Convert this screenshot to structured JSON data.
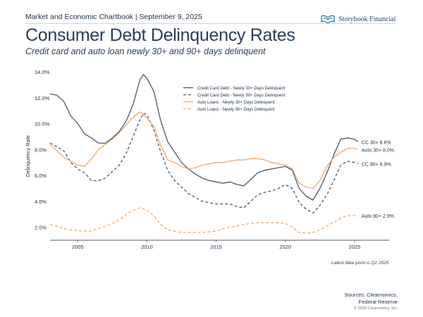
{
  "header": {
    "top_line": "Market and Economic Chartbook | September 9, 2025",
    "logo_text": "Storybook Financial"
  },
  "footnote": "Latest data point is Q2 2025",
  "sources": {
    "line1": "Sources: Clearnomics,",
    "line2": "Federal Reserve"
  },
  "copyright": "© 2025 Clearnomics, Inc.",
  "colors": {
    "navy": "#4a5a6e",
    "orange": "#f0a86a",
    "title": "#2a3f5a",
    "accent_blue": "#2b7fc1"
  },
  "chart_data": {
    "type": "line",
    "title": "Consumer Debt Delinquency Rates",
    "subtitle": "Credit card and auto loan newly 30+ and 90+ days delinquent",
    "ylabel": "Delinquency Rate",
    "xlim": [
      2003.0,
      2027.5
    ],
    "ylim": [
      1.0,
      14.0
    ],
    "x_ticks": [
      2005,
      2010,
      2015,
      2020,
      2025
    ],
    "x_tick_labels": [
      "2005",
      "2010",
      "2015",
      "2020",
      "2025"
    ],
    "y_ticks": [
      2,
      4,
      6,
      8,
      10,
      12,
      14
    ],
    "y_tick_labels": [
      "2.0%",
      "4.0%",
      "6.0%",
      "8.0%",
      "10.0%",
      "12.0%",
      "14.0%"
    ],
    "grid": false,
    "legend_position": "top-right",
    "series": [
      {
        "name": "Credit Card Debt - Newly 30+ Days Delinquent",
        "color": "#4a5a6e",
        "dash": "solid",
        "end_label": "CC 30+ 8.6%",
        "points": [
          [
            2003.0,
            12.3
          ],
          [
            2003.5,
            12.2
          ],
          [
            2004.0,
            11.7
          ],
          [
            2004.5,
            10.6
          ],
          [
            2005.0,
            10.0
          ],
          [
            2005.5,
            9.2
          ],
          [
            2006.0,
            8.9
          ],
          [
            2006.5,
            8.5
          ],
          [
            2007.0,
            8.5
          ],
          [
            2007.5,
            8.9
          ],
          [
            2008.0,
            9.4
          ],
          [
            2008.5,
            10.2
          ],
          [
            2009.0,
            11.5
          ],
          [
            2009.5,
            13.4
          ],
          [
            2009.75,
            13.8
          ],
          [
            2010.0,
            13.5
          ],
          [
            2010.5,
            12.5
          ],
          [
            2011.0,
            10.2
          ],
          [
            2011.5,
            8.6
          ],
          [
            2012.0,
            7.8
          ],
          [
            2012.5,
            7.0
          ],
          [
            2013.0,
            6.5
          ],
          [
            2013.5,
            6.1
          ],
          [
            2014.0,
            5.8
          ],
          [
            2014.5,
            5.6
          ],
          [
            2015.0,
            5.5
          ],
          [
            2015.5,
            5.4
          ],
          [
            2016.0,
            5.5
          ],
          [
            2016.5,
            5.3
          ],
          [
            2017.0,
            5.2
          ],
          [
            2017.5,
            5.7
          ],
          [
            2018.0,
            6.2
          ],
          [
            2018.5,
            6.4
          ],
          [
            2019.0,
            6.5
          ],
          [
            2019.5,
            6.6
          ],
          [
            2020.0,
            6.7
          ],
          [
            2020.5,
            6.4
          ],
          [
            2021.0,
            5.0
          ],
          [
            2021.5,
            4.4
          ],
          [
            2022.0,
            4.1
          ],
          [
            2022.5,
            5.0
          ],
          [
            2023.0,
            6.2
          ],
          [
            2023.5,
            7.6
          ],
          [
            2024.0,
            8.8
          ],
          [
            2024.5,
            8.9
          ],
          [
            2025.0,
            8.8
          ],
          [
            2025.25,
            8.6
          ]
        ]
      },
      {
        "name": "Credit Card Debt - Newly 90+ Days Delinquent",
        "color": "#4a5a6e",
        "dash": "dashed",
        "end_label": "CC 90+ 6.9%",
        "points": [
          [
            2003.0,
            8.5
          ],
          [
            2003.5,
            8.2
          ],
          [
            2004.0,
            7.9
          ],
          [
            2004.5,
            7.0
          ],
          [
            2005.0,
            6.5
          ],
          [
            2005.5,
            6.2
          ],
          [
            2006.0,
            5.6
          ],
          [
            2006.5,
            5.6
          ],
          [
            2007.0,
            5.8
          ],
          [
            2007.5,
            6.3
          ],
          [
            2008.0,
            6.8
          ],
          [
            2008.5,
            7.7
          ],
          [
            2009.0,
            9.0
          ],
          [
            2009.5,
            10.3
          ],
          [
            2009.75,
            10.8
          ],
          [
            2010.0,
            10.7
          ],
          [
            2010.5,
            9.5
          ],
          [
            2011.0,
            7.8
          ],
          [
            2011.5,
            6.4
          ],
          [
            2012.0,
            5.6
          ],
          [
            2012.5,
            5.1
          ],
          [
            2013.0,
            4.6
          ],
          [
            2013.5,
            4.3
          ],
          [
            2014.0,
            4.0
          ],
          [
            2014.5,
            3.9
          ],
          [
            2015.0,
            3.8
          ],
          [
            2015.5,
            3.8
          ],
          [
            2016.0,
            3.8
          ],
          [
            2016.5,
            3.6
          ],
          [
            2017.0,
            3.5
          ],
          [
            2017.5,
            4.0
          ],
          [
            2018.0,
            4.5
          ],
          [
            2018.5,
            4.7
          ],
          [
            2019.0,
            4.8
          ],
          [
            2019.5,
            5.0
          ],
          [
            2020.0,
            5.3
          ],
          [
            2020.5,
            5.0
          ],
          [
            2021.0,
            3.9
          ],
          [
            2021.5,
            3.4
          ],
          [
            2022.0,
            3.1
          ],
          [
            2022.5,
            3.7
          ],
          [
            2023.0,
            4.5
          ],
          [
            2023.5,
            5.6
          ],
          [
            2024.0,
            6.8
          ],
          [
            2024.5,
            7.1
          ],
          [
            2025.0,
            7.0
          ],
          [
            2025.25,
            6.9
          ]
        ]
      },
      {
        "name": "Auto Loans - Newly 30+ Days Delinquent",
        "color": "#f0a86a",
        "dash": "solid",
        "end_label": "Auto 30+ 8.0%",
        "points": [
          [
            2003.0,
            8.4
          ],
          [
            2003.5,
            7.9
          ],
          [
            2004.0,
            7.4
          ],
          [
            2004.5,
            7.1
          ],
          [
            2005.0,
            6.8
          ],
          [
            2005.5,
            6.7
          ],
          [
            2006.0,
            7.3
          ],
          [
            2006.5,
            8.0
          ],
          [
            2007.0,
            8.4
          ],
          [
            2007.5,
            8.8
          ],
          [
            2008.0,
            9.3
          ],
          [
            2008.5,
            9.9
          ],
          [
            2009.0,
            10.5
          ],
          [
            2009.5,
            10.9
          ],
          [
            2009.75,
            10.7
          ],
          [
            2010.0,
            10.4
          ],
          [
            2010.5,
            9.8
          ],
          [
            2011.0,
            8.3
          ],
          [
            2011.5,
            7.2
          ],
          [
            2012.0,
            7.0
          ],
          [
            2012.5,
            6.7
          ],
          [
            2013.0,
            6.5
          ],
          [
            2013.5,
            6.6
          ],
          [
            2014.0,
            6.8
          ],
          [
            2014.5,
            6.9
          ],
          [
            2015.0,
            7.0
          ],
          [
            2015.5,
            7.0
          ],
          [
            2016.0,
            7.1
          ],
          [
            2016.5,
            7.2
          ],
          [
            2017.0,
            7.2
          ],
          [
            2017.5,
            7.3
          ],
          [
            2018.0,
            7.3
          ],
          [
            2018.5,
            7.2
          ],
          [
            2019.0,
            7.0
          ],
          [
            2019.5,
            6.9
          ],
          [
            2020.0,
            6.8
          ],
          [
            2020.5,
            6.5
          ],
          [
            2021.0,
            5.4
          ],
          [
            2021.5,
            5.1
          ],
          [
            2022.0,
            5.0
          ],
          [
            2022.5,
            5.6
          ],
          [
            2023.0,
            6.7
          ],
          [
            2023.5,
            7.4
          ],
          [
            2024.0,
            7.8
          ],
          [
            2024.5,
            8.1
          ],
          [
            2025.0,
            8.1
          ],
          [
            2025.25,
            8.0
          ]
        ]
      },
      {
        "name": "Auto Loans - Newly 90+ Days Delinquent",
        "color": "#f0a86a",
        "dash": "dashed",
        "end_label": "Auto 90+ 2.9%",
        "points": [
          [
            2003.0,
            2.2
          ],
          [
            2003.5,
            2.1
          ],
          [
            2004.0,
            1.9
          ],
          [
            2004.5,
            1.8
          ],
          [
            2005.0,
            1.75
          ],
          [
            2005.5,
            1.7
          ],
          [
            2006.0,
            1.7
          ],
          [
            2006.5,
            1.9
          ],
          [
            2007.0,
            2.1
          ],
          [
            2007.5,
            2.3
          ],
          [
            2008.0,
            2.6
          ],
          [
            2008.5,
            3.0
          ],
          [
            2009.0,
            3.3
          ],
          [
            2009.5,
            3.5
          ],
          [
            2010.0,
            3.3
          ],
          [
            2010.5,
            2.9
          ],
          [
            2011.0,
            2.2
          ],
          [
            2011.5,
            1.8
          ],
          [
            2012.0,
            1.7
          ],
          [
            2012.5,
            1.6
          ],
          [
            2013.0,
            1.6
          ],
          [
            2013.5,
            1.6
          ],
          [
            2014.0,
            1.6
          ],
          [
            2014.5,
            1.65
          ],
          [
            2015.0,
            1.7
          ],
          [
            2015.5,
            1.9
          ],
          [
            2016.0,
            2.0
          ],
          [
            2016.5,
            2.1
          ],
          [
            2017.0,
            2.2
          ],
          [
            2017.5,
            2.3
          ],
          [
            2018.0,
            2.35
          ],
          [
            2018.5,
            2.35
          ],
          [
            2019.0,
            2.35
          ],
          [
            2019.5,
            2.35
          ],
          [
            2020.0,
            2.3
          ],
          [
            2020.5,
            2.0
          ],
          [
            2021.0,
            1.6
          ],
          [
            2021.5,
            1.55
          ],
          [
            2022.0,
            1.6
          ],
          [
            2022.5,
            1.8
          ],
          [
            2023.0,
            2.1
          ],
          [
            2023.5,
            2.4
          ],
          [
            2024.0,
            2.7
          ],
          [
            2024.5,
            2.9
          ],
          [
            2025.0,
            2.9
          ],
          [
            2025.25,
            2.9
          ]
        ]
      }
    ]
  }
}
